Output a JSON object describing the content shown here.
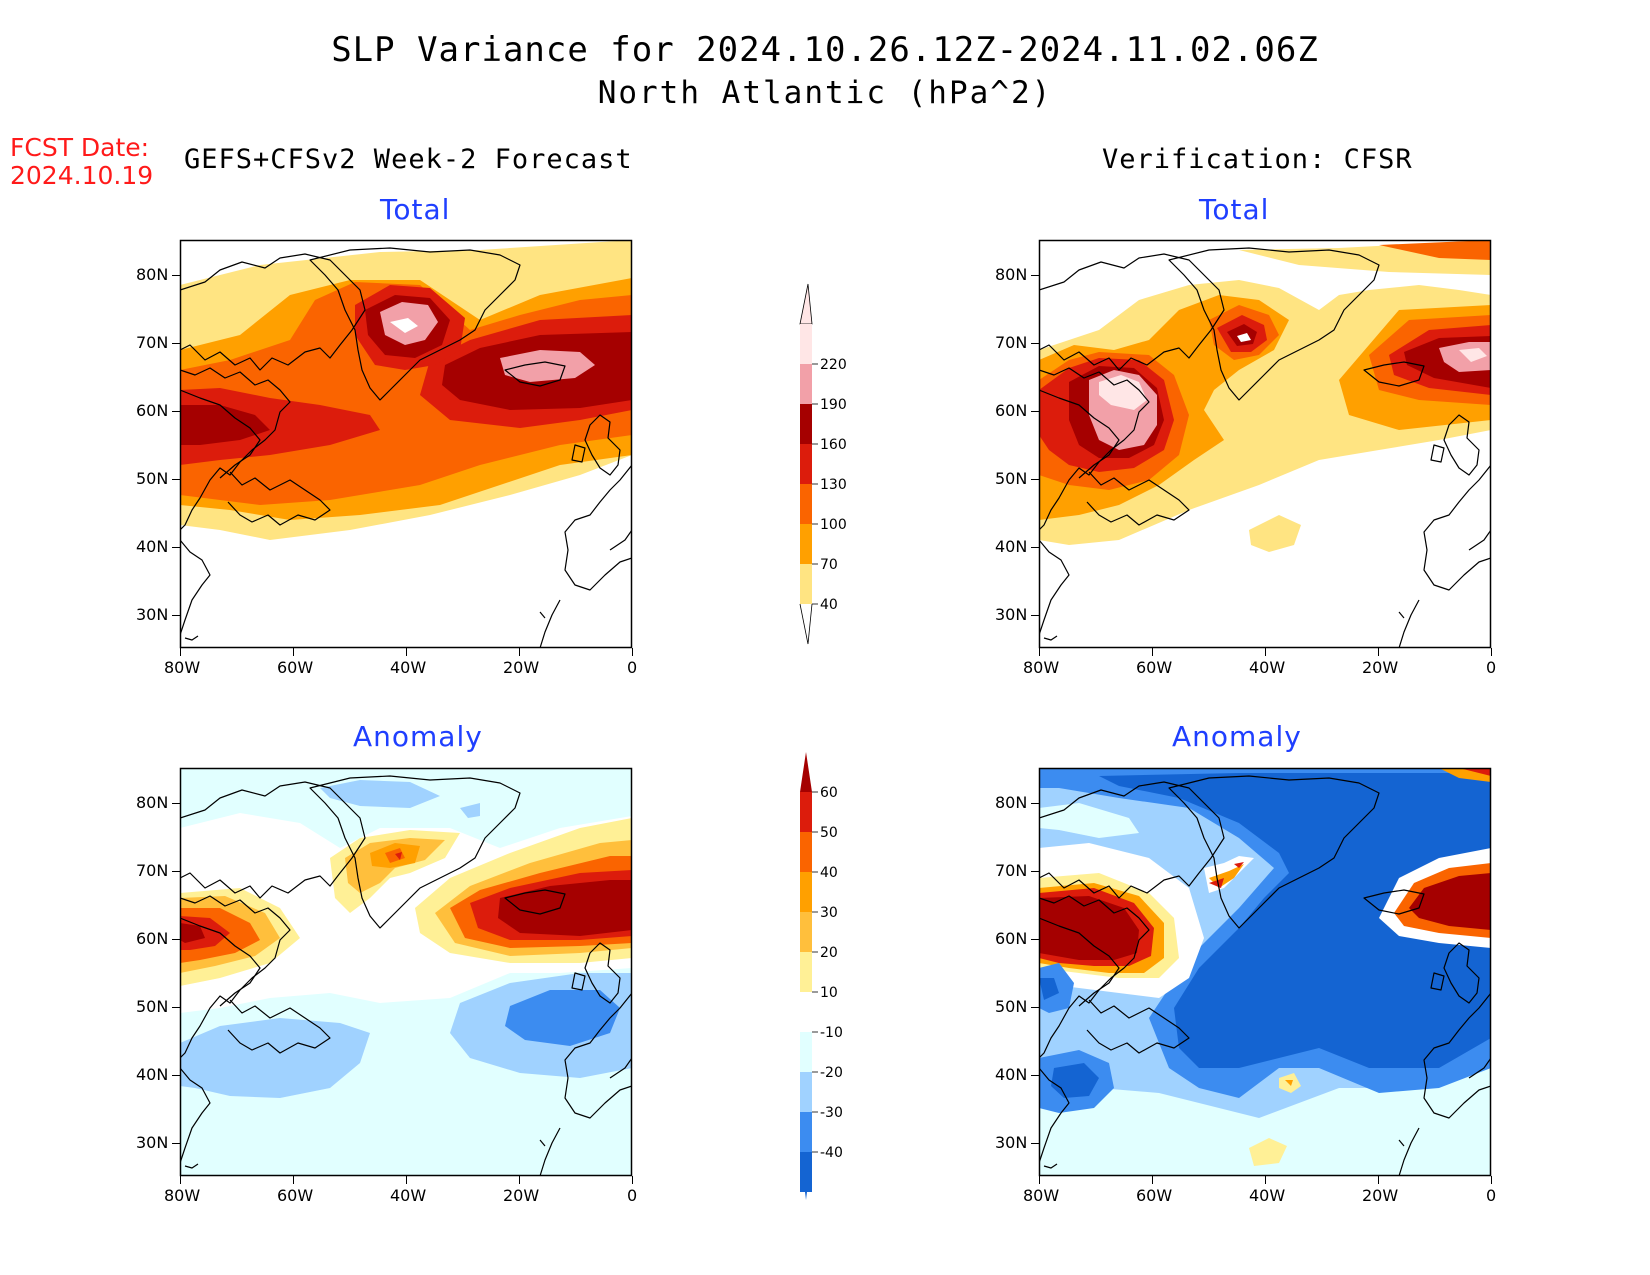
{
  "title_line1": "SLP Variance for 2024.10.26.12Z-2024.11.02.06Z",
  "title_line2": "North Atlantic (hPa^2)",
  "fcst_date_label": "FCST Date:",
  "fcst_date_value": "2024.10.19",
  "left_header": "GEFS+CFSv2 Week-2 Forecast",
  "right_header": "Verification: CFSR",
  "lat_ticks": [
    "80N",
    "70N",
    "60N",
    "50N",
    "40N",
    "30N"
  ],
  "lon_ticks": [
    "80W",
    "60W",
    "40W",
    "20W",
    "0"
  ],
  "panels": [
    {
      "id": "fcst-total",
      "subtitle": "Total"
    },
    {
      "id": "verif-total",
      "subtitle": "Total"
    },
    {
      "id": "fcst-anomaly",
      "subtitle": "Anomaly"
    },
    {
      "id": "verif-anomaly",
      "subtitle": "Anomaly"
    }
  ],
  "total_colorbar": {
    "levels": [
      "220",
      "190",
      "160",
      "130",
      "100",
      "70",
      "40"
    ],
    "colors": [
      "#ffe6e6",
      "#f2a0a8",
      "#a50000",
      "#dc1c0c",
      "#fa6400",
      "#ffa000",
      "#ffe482"
    ]
  },
  "anomaly_colorbar": {
    "levels": [
      "60",
      "50",
      "40",
      "30",
      "20",
      "10",
      "-10",
      "-20",
      "-30",
      "-40"
    ],
    "colors_top_to_bottom": [
      "#a50000",
      "#dc1c0c",
      "#fa6400",
      "#ffa000",
      "#ffbf3c",
      "#fff096",
      "#ffffff",
      "#e1ffff",
      "#a0d2ff",
      "#3c8cf0",
      "#1464d2"
    ]
  }
}
